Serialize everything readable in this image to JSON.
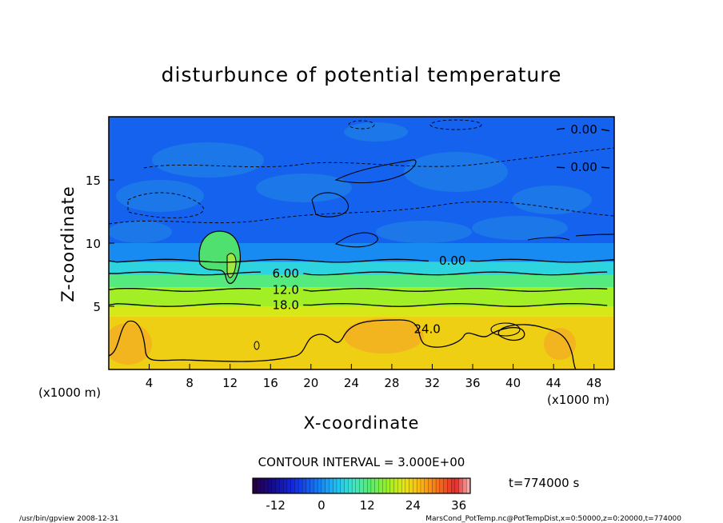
{
  "chart_data": {
    "type": "heatmap",
    "title": "disturbunce of potential temperature",
    "xlabel": "X-coordinate",
    "ylabel": "Z-coordinate",
    "x_unit": "(x1000 m)",
    "y_unit": "(x1000 m)",
    "xlim": [
      0,
      50
    ],
    "ylim": [
      0,
      20
    ],
    "x_ticks": [
      4,
      8,
      12,
      16,
      20,
      24,
      28,
      32,
      36,
      40,
      44,
      48
    ],
    "y_ticks": [
      5,
      10,
      15
    ],
    "contour_interval": "CONTOUR INTERVAL = 3.000E+00",
    "time_label": "t=774000 s",
    "colorbar": {
      "ticks": [
        "-12",
        "0",
        "12",
        "24",
        "36"
      ],
      "range": [
        -18,
        39
      ]
    },
    "layers": [
      {
        "z_top": 20,
        "z_bottom": 10,
        "value": -3
      },
      {
        "z_top": 10,
        "z_bottom": 8.5,
        "value": 0
      },
      {
        "z_top": 8.5,
        "z_bottom": 7.5,
        "value": 6
      },
      {
        "z_top": 7.5,
        "z_bottom": 6.5,
        "value": 12
      },
      {
        "z_top": 6.5,
        "z_bottom": 5.0,
        "value": 18
      },
      {
        "z_top": 5.0,
        "z_bottom": 4.2,
        "value": 21
      },
      {
        "z_top": 4.2,
        "z_bottom": 0,
        "value": 24
      }
    ],
    "contour_lines": [
      {
        "label": "0.00",
        "z": 19.0,
        "label_x": 47
      },
      {
        "label": "0.00",
        "z": 16.0,
        "label_x": 47
      },
      {
        "label": "0.00",
        "z": 8.6,
        "label_x": 34
      },
      {
        "label": "6.00",
        "z": 7.6,
        "label_x": 17.5
      },
      {
        "label": "12.0",
        "z": 6.3,
        "label_x": 17.5
      },
      {
        "label": "18.0",
        "z": 5.1,
        "label_x": 17.5
      },
      {
        "label": "24.0",
        "z": 3.2,
        "label_x": 31.5
      }
    ]
  },
  "footer": {
    "left": "/usr/bin/gpview   2008-12-31",
    "right": "MarsCond_PotTemp.nc@PotTempDist,x=0:50000,z=0:20000,t=774000"
  }
}
